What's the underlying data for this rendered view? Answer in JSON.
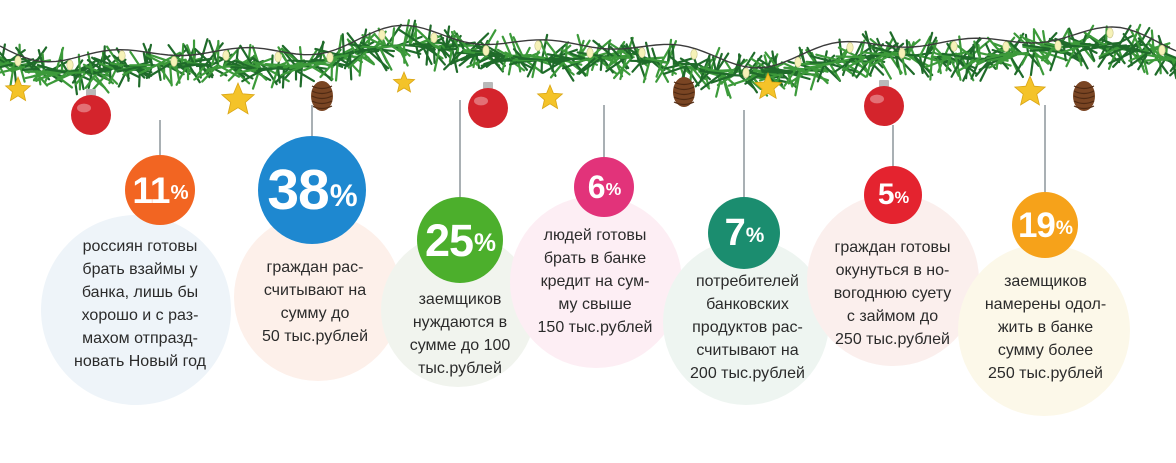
{
  "chart_data": {
    "type": "infographic",
    "unit": "%",
    "items": [
      {
        "value": 11,
        "pct": "%",
        "text": "россиян готовы\nбрать взаймы у\nбанка, лишь бы\nхорошо и с раз-\nмахом отпразд-\nновать Новый год",
        "color": "#f26522",
        "bg": "#eef4f9"
      },
      {
        "value": 38,
        "pct": "%",
        "text": "граждан рас-\nсчитывают на\nсумму до\n50 тыс.рублей",
        "color": "#1e88d0",
        "bg": "#fdf0ea"
      },
      {
        "value": 25,
        "pct": "%",
        "text": "заемщиков\nнуждаются в\nсумме до 100\nтыс.рублей",
        "color": "#4caf2c",
        "bg": "#f1f4ee"
      },
      {
        "value": 6,
        "pct": "%",
        "text": "людей готовы\nбрать в банке\nкредит на сум-\nму свыше\n150 тыс.рублей",
        "color": "#e2337a",
        "bg": "#fdeef4"
      },
      {
        "value": 7,
        "pct": "%",
        "text": "потребителей\nбанковских\nпродуктов рас-\nсчитывают на\n200 тыс.рублей",
        "color": "#1b8d6f",
        "bg": "#eef5f1"
      },
      {
        "value": 5,
        "pct": "%",
        "text": "граждан готовы\nокунуться в но-\nвогоднюю суету\nс займом до\n250 тыс.рублей",
        "color": "#e4232f",
        "bg": "#fbefed"
      },
      {
        "value": 19,
        "pct": "%",
        "text": "заемщиков\nнамерены одол-\nжить в банке\nсумму более\n250 тыс.рублей",
        "color": "#f6a21a",
        "bg": "#fcf8e9"
      }
    ]
  },
  "colors": {
    "pine_dark": "#1f6b2a",
    "pine_light": "#3c9a3a",
    "wire": "#3b3b3b",
    "bauble_red": "#d4242c",
    "star": "#f4c329",
    "cone": "#7a4523",
    "light": "#f6f2b8"
  },
  "icons": [
    "garland",
    "red-bauble",
    "gold-star",
    "pine-cone",
    "string-light"
  ]
}
